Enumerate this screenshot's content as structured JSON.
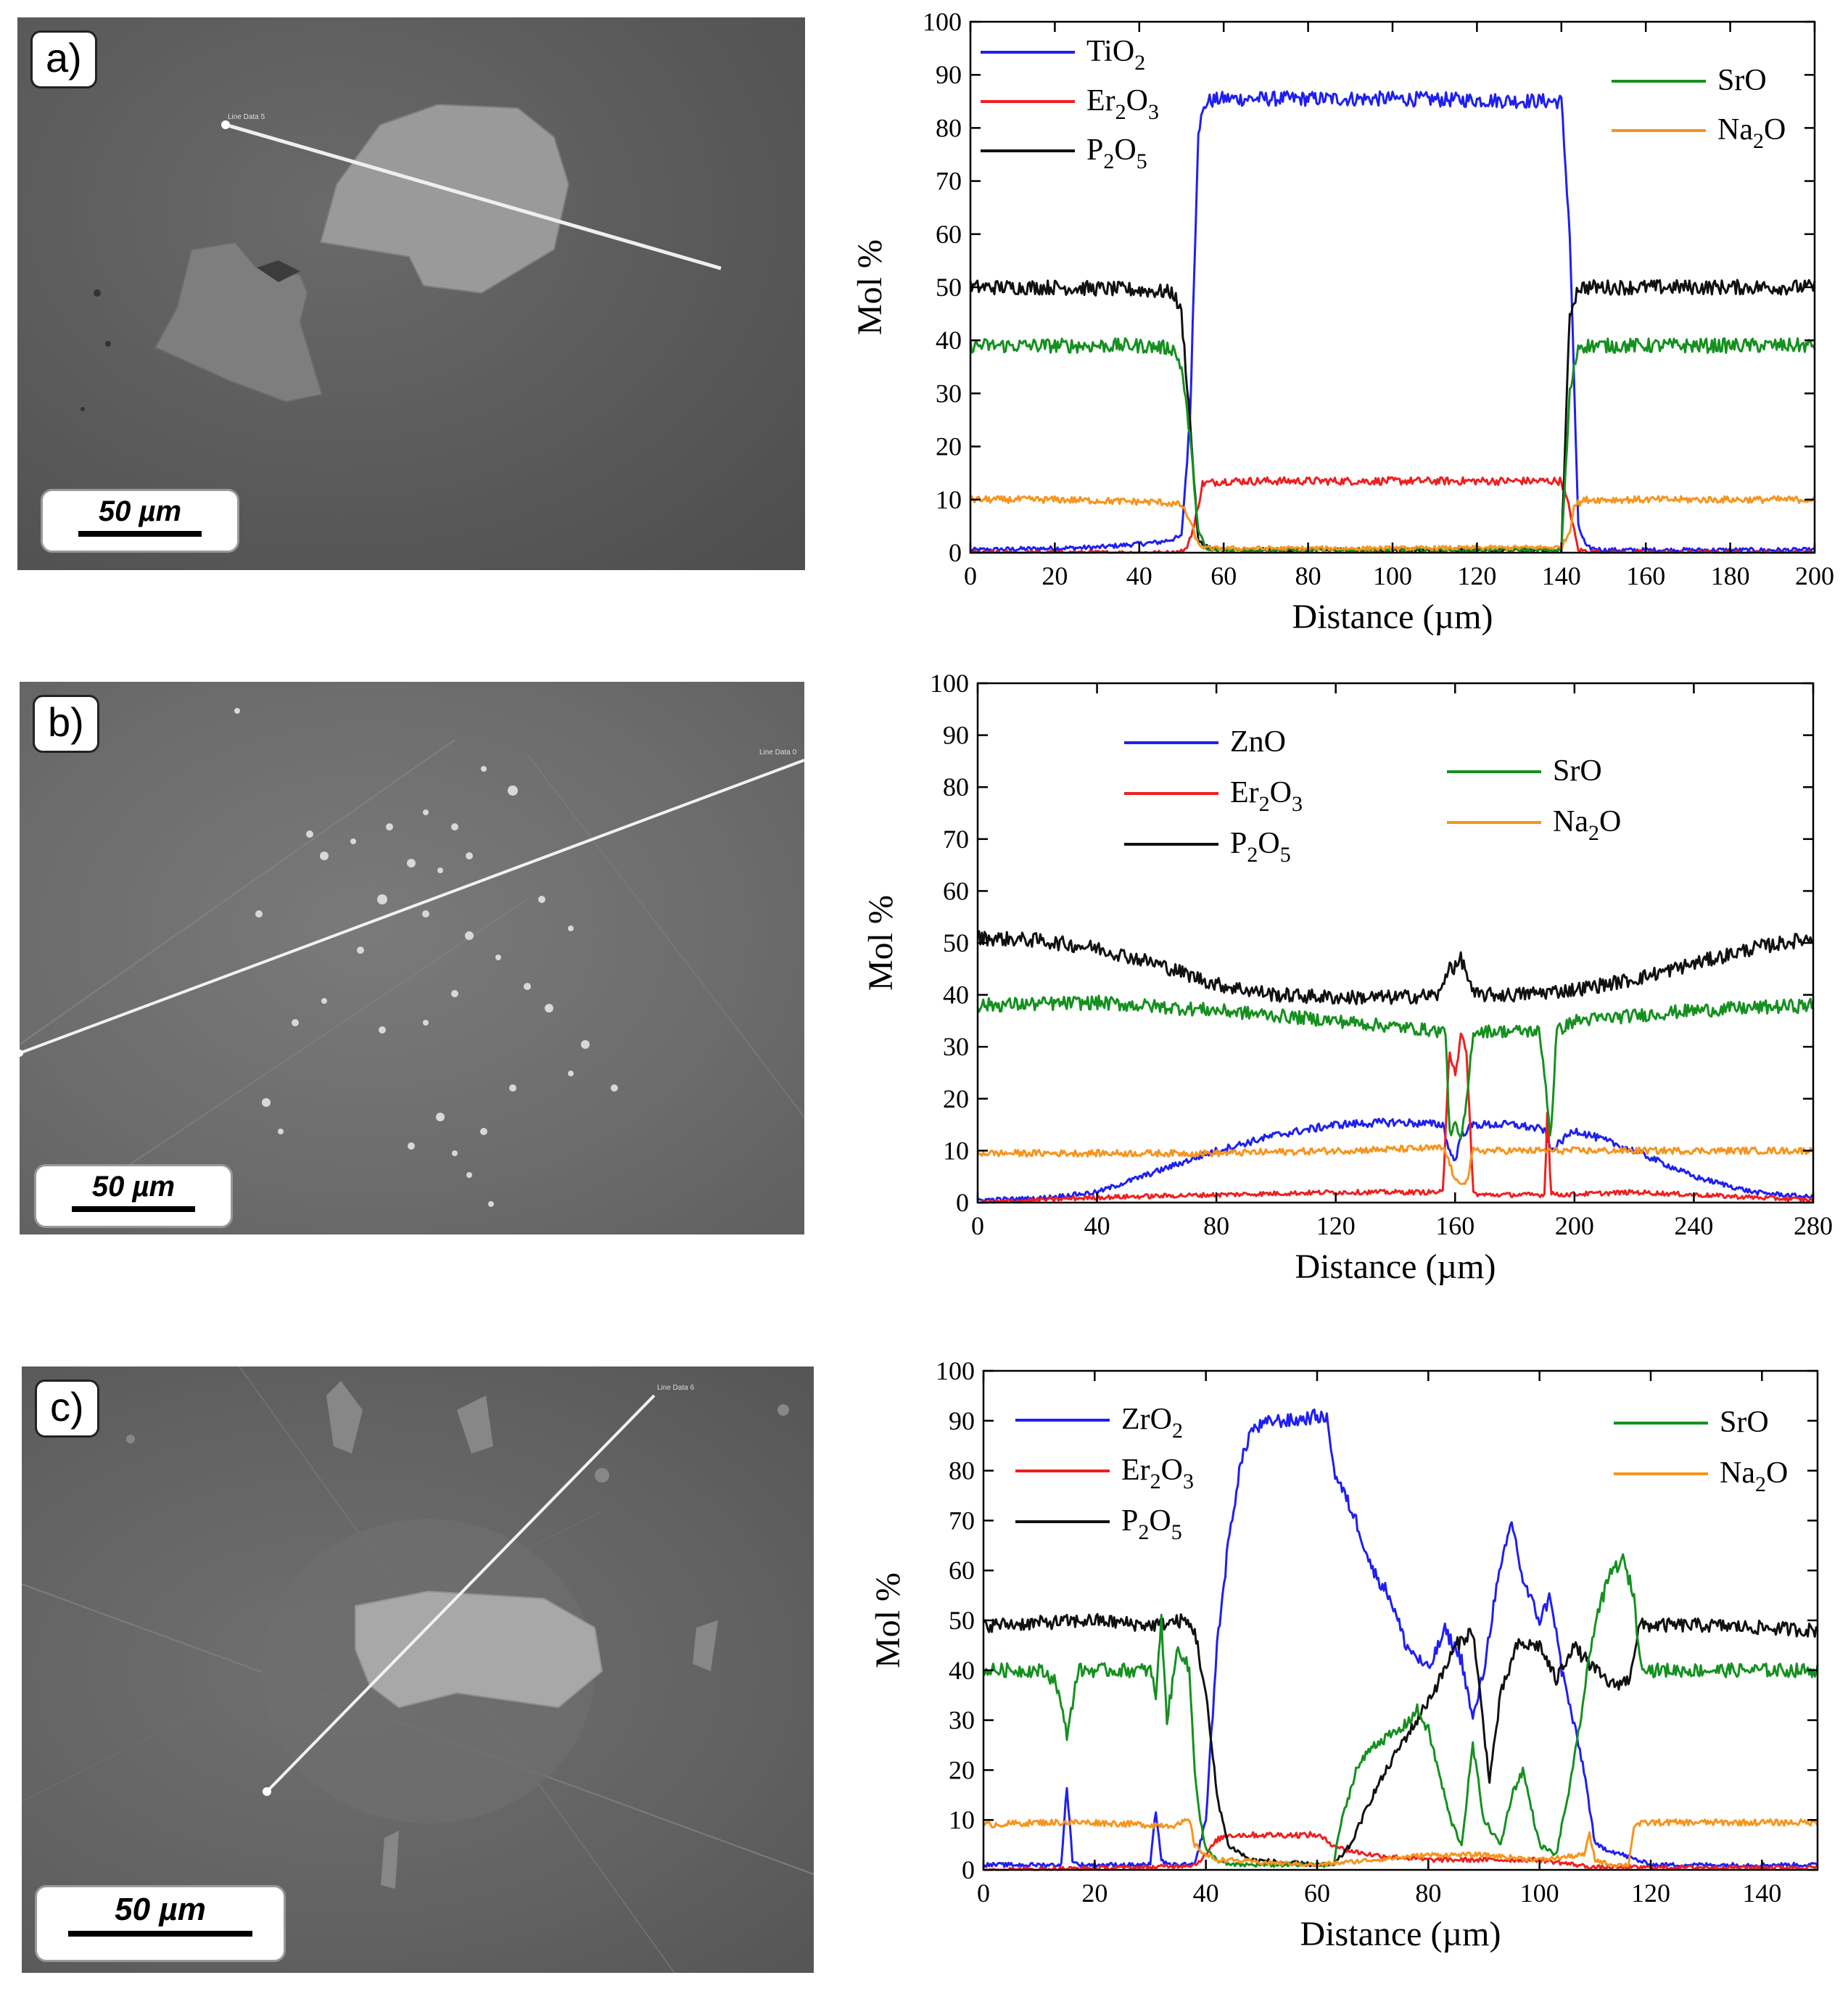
{
  "figure": {
    "panels": [
      {
        "label": "a)",
        "scale_bar": "50 µm",
        "line_tag": "Line Data 5"
      },
      {
        "label": "b)",
        "scale_bar": "50 µm",
        "line_tag": "Line Data 0"
      },
      {
        "label": "c)",
        "scale_bar": "50 µm",
        "line_tag": "Line Data 6"
      }
    ]
  },
  "chart_data": [
    {
      "type": "line",
      "panel": "a",
      "xlabel": "Distance (µm)",
      "ylabel": "Mol %",
      "xlim": [
        0,
        200
      ],
      "ylim": [
        0,
        100
      ],
      "xticks": [
        0,
        20,
        40,
        60,
        80,
        100,
        120,
        140,
        160,
        180,
        200
      ],
      "yticks": [
        0,
        10,
        20,
        30,
        40,
        50,
        60,
        70,
        80,
        90,
        100
      ],
      "legend": {
        "left": [
          {
            "base": "TiO",
            "sub": "2",
            "mid": "",
            "sub2": "",
            "color": "#1f1ff2"
          },
          {
            "base": "Er",
            "sub": "2",
            "mid": "O",
            "sub2": "3",
            "color": "#f01f1f"
          },
          {
            "base": "P",
            "sub": "2",
            "mid": "O",
            "sub2": "5",
            "color": "#111111"
          }
        ],
        "right": [
          {
            "base": "SrO",
            "sub": "",
            "mid": "",
            "sub2": "",
            "color": "#15901f"
          },
          {
            "base": "Na",
            "sub": "2",
            "mid": "O",
            "sub2": "",
            "color": "#f7941d"
          }
        ]
      },
      "series": [
        {
          "name": "TiO2",
          "color": "#1f1ff2",
          "x": [
            0,
            30,
            45,
            50,
            52,
            54,
            56,
            60,
            100,
            140,
            142,
            144,
            146,
            150,
            200
          ],
          "y": [
            0.5,
            1,
            2,
            3,
            25,
            80,
            85,
            85.5,
            85.5,
            85,
            60,
            5,
            1,
            0.5,
            0.5
          ]
        },
        {
          "name": "Er2O3",
          "color": "#f01f1f",
          "x": [
            0,
            48,
            51,
            53,
            55,
            60,
            100,
            140,
            142,
            144,
            150,
            200
          ],
          "y": [
            0,
            0,
            0.5,
            5,
            13,
            13.5,
            13.5,
            13.5,
            8,
            0.5,
            0,
            0
          ]
        },
        {
          "name": "P2O5",
          "color": "#111111",
          "x": [
            0,
            20,
            40,
            48,
            50,
            52,
            54,
            58,
            100,
            140,
            142,
            144,
            160,
            200
          ],
          "y": [
            50,
            50,
            49.5,
            49,
            45,
            25,
            2,
            0.5,
            0.5,
            0.5,
            45,
            50,
            50,
            50
          ]
        },
        {
          "name": "SrO",
          "color": "#15901f",
          "x": [
            0,
            20,
            40,
            48,
            50,
            52,
            54,
            56,
            100,
            140,
            142,
            144,
            160,
            200
          ],
          "y": [
            39,
            39,
            39,
            38.5,
            35,
            22,
            4,
            0.5,
            0.5,
            0.5,
            30,
            39,
            39,
            39
          ]
        },
        {
          "name": "Na2O",
          "color": "#f7941d",
          "x": [
            0,
            20,
            45,
            50,
            52,
            54,
            56,
            100,
            140,
            142,
            143,
            146,
            160,
            200
          ],
          "y": [
            10,
            10,
            9.5,
            9,
            6,
            1.5,
            0.8,
            0.8,
            1,
            4,
            9,
            10,
            10,
            10
          ]
        }
      ]
    },
    {
      "type": "line",
      "panel": "b",
      "xlabel": "Distance (µm)",
      "ylabel": "Mol %",
      "xlim": [
        0,
        280
      ],
      "ylim": [
        0,
        100
      ],
      "xticks": [
        0,
        40,
        80,
        120,
        160,
        200,
        240,
        280
      ],
      "yticks": [
        0,
        10,
        20,
        30,
        40,
        50,
        60,
        70,
        80,
        90,
        100
      ],
      "legend": {
        "left": [
          {
            "base": "ZnO",
            "sub": "",
            "mid": "",
            "sub2": "",
            "color": "#1f1ff2"
          },
          {
            "base": "Er",
            "sub": "2",
            "mid": "O",
            "sub2": "3",
            "color": "#f01f1f"
          },
          {
            "base": "P",
            "sub": "2",
            "mid": "O",
            "sub2": "5",
            "color": "#111111"
          }
        ],
        "right": [
          {
            "base": "SrO",
            "sub": "",
            "mid": "",
            "sub2": "",
            "color": "#15901f"
          },
          {
            "base": "Na",
            "sub": "2",
            "mid": "O",
            "sub2": "",
            "color": "#f7941d"
          }
        ]
      },
      "series": [
        {
          "name": "ZnO",
          "color": "#1f1ff2",
          "x": [
            0,
            20,
            40,
            60,
            80,
            100,
            120,
            140,
            156,
            158,
            160,
            162,
            166,
            180,
            190,
            192,
            200,
            220,
            240,
            260,
            280
          ],
          "y": [
            0.5,
            0.8,
            2,
            6,
            10,
            13,
            15,
            15.5,
            15,
            10,
            8,
            13,
            15,
            15,
            14,
            10,
            14,
            10,
            5,
            2,
            1
          ]
        },
        {
          "name": "Er2O3",
          "color": "#f01f1f",
          "x": [
            0,
            40,
            80,
            120,
            156,
            158,
            160,
            162,
            164,
            166,
            168,
            190,
            191,
            192,
            194,
            220,
            260,
            280
          ],
          "y": [
            0,
            1,
            1.5,
            2,
            2,
            30,
            25,
            32,
            28,
            2,
            1.5,
            1.5,
            20,
            2,
            1.5,
            2,
            1,
            0.5
          ]
        },
        {
          "name": "P2O5",
          "color": "#111111",
          "x": [
            0,
            20,
            40,
            60,
            80,
            100,
            120,
            140,
            155,
            158,
            160,
            162,
            164,
            166,
            180,
            200,
            220,
            240,
            260,
            280
          ],
          "y": [
            51,
            50.5,
            49,
            46,
            42,
            40,
            39.5,
            39.5,
            40,
            46,
            45,
            47,
            44,
            40,
            40,
            41,
            43,
            46,
            49,
            51
          ]
        },
        {
          "name": "SrO",
          "color": "#15901f",
          "x": [
            0,
            40,
            80,
            120,
            155,
            157,
            158,
            160,
            162,
            164,
            166,
            170,
            188,
            190,
            192,
            194,
            200,
            240,
            280
          ],
          "y": [
            38,
            38.5,
            37,
            35,
            33,
            33,
            13,
            15,
            12,
            20,
            33,
            33,
            33,
            25,
            12,
            33,
            35,
            37,
            38
          ]
        },
        {
          "name": "Na2O",
          "color": "#f7941d",
          "x": [
            0,
            40,
            80,
            120,
            156,
            158,
            160,
            164,
            166,
            170,
            200,
            240,
            280
          ],
          "y": [
            9.5,
            9.5,
            9.5,
            10,
            10.5,
            8,
            4,
            4,
            10,
            10,
            10,
            10,
            10
          ]
        }
      ]
    },
    {
      "type": "line",
      "panel": "c",
      "xlabel": "Distance (µm)",
      "ylabel": "Mol %",
      "xlim": [
        0,
        150
      ],
      "ylim": [
        0,
        100
      ],
      "xticks": [
        0,
        20,
        40,
        60,
        80,
        100,
        120,
        140
      ],
      "yticks": [
        0,
        10,
        20,
        30,
        40,
        50,
        60,
        70,
        80,
        90,
        100
      ],
      "legend": {
        "left": [
          {
            "base": "ZrO",
            "sub": "2",
            "mid": "",
            "sub2": "",
            "color": "#1f1ff2"
          },
          {
            "base": "Er",
            "sub": "2",
            "mid": "O",
            "sub2": "3",
            "color": "#f01f1f"
          },
          {
            "base": "P",
            "sub": "2",
            "mid": "O",
            "sub2": "5",
            "color": "#111111"
          }
        ],
        "right": [
          {
            "base": "SrO",
            "sub": "",
            "mid": "",
            "sub2": "",
            "color": "#15901f"
          },
          {
            "base": "Na",
            "sub": "2",
            "mid": "O",
            "sub2": "",
            "color": "#f7941d"
          }
        ]
      },
      "series": [
        {
          "name": "ZrO2",
          "color": "#1f1ff2",
          "x": [
            0,
            14,
            15,
            16,
            17,
            30,
            31,
            32,
            33,
            38,
            40,
            42,
            44,
            46,
            48,
            52,
            56,
            60,
            62,
            63,
            65,
            67,
            70,
            73,
            76,
            80,
            83,
            86,
            88,
            90,
            92,
            95,
            97,
            100,
            102,
            104,
            106,
            108,
            110,
            120,
            130,
            150
          ],
          "y": [
            1,
            1,
            17,
            2,
            1,
            1,
            12,
            2,
            1,
            1,
            10,
            45,
            65,
            80,
            88,
            90,
            90,
            91,
            90,
            80,
            75,
            70,
            60,
            55,
            45,
            40,
            48,
            42,
            30,
            40,
            55,
            70,
            58,
            50,
            55,
            40,
            30,
            20,
            5,
            1,
            1,
            1
          ]
        },
        {
          "name": "Er2O3",
          "color": "#f01f1f",
          "x": [
            0,
            30,
            38,
            40,
            42,
            44,
            50,
            60,
            63,
            65,
            70,
            80,
            88,
            95,
            100,
            110,
            150
          ],
          "y": [
            0,
            0.5,
            1,
            3,
            6,
            7,
            7,
            7,
            5,
            4,
            3,
            2,
            2,
            2,
            2,
            0.5,
            0.5
          ]
        },
        {
          "name": "P2O5",
          "color": "#111111",
          "x": [
            0,
            20,
            30,
            36,
            38,
            40,
            42,
            44,
            48,
            60,
            63,
            66,
            70,
            75,
            78,
            82,
            85,
            88,
            91,
            93,
            96,
            100,
            103,
            106,
            110,
            113,
            116,
            118,
            130,
            150
          ],
          "y": [
            49,
            50,
            49,
            50,
            48,
            35,
            15,
            5,
            2,
            1,
            1,
            5,
            15,
            25,
            30,
            38,
            45,
            48,
            18,
            35,
            45,
            45,
            38,
            45,
            40,
            37,
            38,
            49,
            49,
            48
          ]
        },
        {
          "name": "SrO",
          "color": "#15901f",
          "x": [
            0,
            10,
            13,
            15,
            17,
            20,
            30,
            31,
            32,
            33,
            35,
            37,
            38,
            39,
            40,
            42,
            44,
            50,
            60,
            63,
            64,
            67,
            70,
            75,
            78,
            80,
            84,
            86,
            88,
            90,
            93,
            95,
            97,
            100,
            103,
            106,
            110,
            113,
            115,
            117,
            118,
            120,
            130,
            150
          ],
          "y": [
            40,
            40,
            38,
            27,
            40,
            40,
            40,
            35,
            50,
            30,
            45,
            40,
            20,
            10,
            4,
            2,
            1,
            1,
            1,
            1,
            8,
            20,
            25,
            28,
            32,
            28,
            10,
            5,
            25,
            10,
            5,
            15,
            20,
            5,
            3,
            20,
            50,
            60,
            62,
            55,
            42,
            40,
            40,
            40
          ]
        },
        {
          "name": "Na2O",
          "color": "#f7941d",
          "x": [
            0,
            10,
            20,
            30,
            35,
            37,
            38,
            40,
            42,
            44,
            50,
            60,
            70,
            80,
            90,
            100,
            108,
            109,
            110,
            113,
            116,
            117,
            120,
            130,
            150
          ],
          "y": [
            9,
            9.5,
            9.5,
            9,
            9,
            10,
            5,
            3,
            2,
            2,
            1.5,
            1,
            2,
            3,
            3,
            2,
            3,
            7,
            2,
            1,
            1,
            9,
            9.5,
            9.5,
            9.5
          ]
        }
      ]
    }
  ]
}
